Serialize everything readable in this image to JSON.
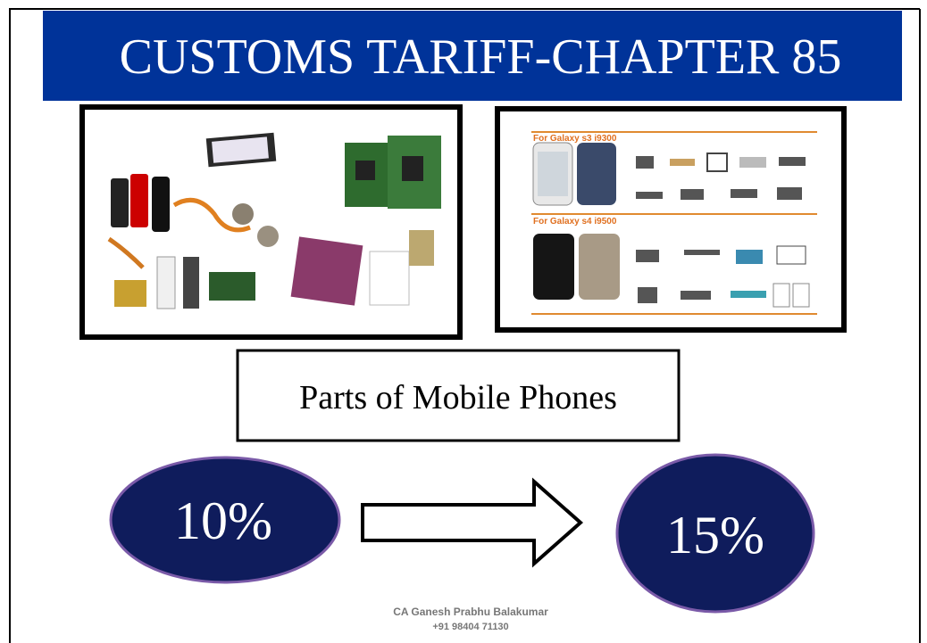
{
  "header": {
    "title": "CUSTOMS TARIFF-CHAPTER 85"
  },
  "images": {
    "right_captions": [
      "For Galaxy s3 i9300",
      "For Galaxy s4 i9500"
    ]
  },
  "label": "Parts of Mobile Phones",
  "rate_change": {
    "from": "10%",
    "to": "15%"
  },
  "footer": {
    "author": "CA Ganesh Prabhu Balakumar",
    "phone": "+91 98404 71130"
  }
}
